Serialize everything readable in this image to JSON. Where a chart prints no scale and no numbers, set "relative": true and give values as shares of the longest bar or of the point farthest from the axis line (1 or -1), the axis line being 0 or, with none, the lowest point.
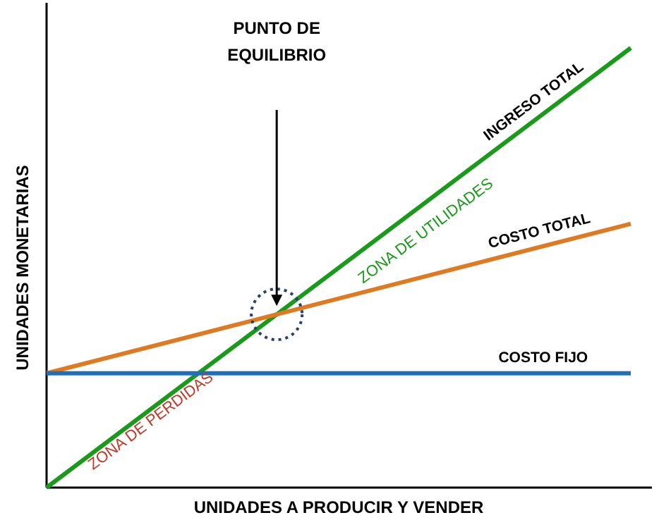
{
  "chart_data": {
    "type": "line",
    "relative": true,
    "xlabel": "UNIDADES A PRODUCIR Y VENDER",
    "ylabel": "UNIDADES MONETARIAS",
    "categories": [
      null,
      null
    ],
    "series": [
      {
        "name": "INGRESO TOTAL",
        "color": "#1a9a1a",
        "values": [
          0,
          1
        ]
      },
      {
        "name": "COSTO TOTAL",
        "color": "#e07a22",
        "values": [
          0.26,
          0.6
        ]
      },
      {
        "name": "COSTO FIJO",
        "color": "#1f6fbf",
        "values": [
          0.26,
          0.26
        ]
      }
    ],
    "annotations": [
      "PUNTO DE EQUILIBRIO",
      "ZONA DE UTILIDADES",
      "ZONA DE PERDIDAS"
    ],
    "grid": false,
    "legend": false,
    "marker": "none",
    "line_style": "solid"
  }
}
